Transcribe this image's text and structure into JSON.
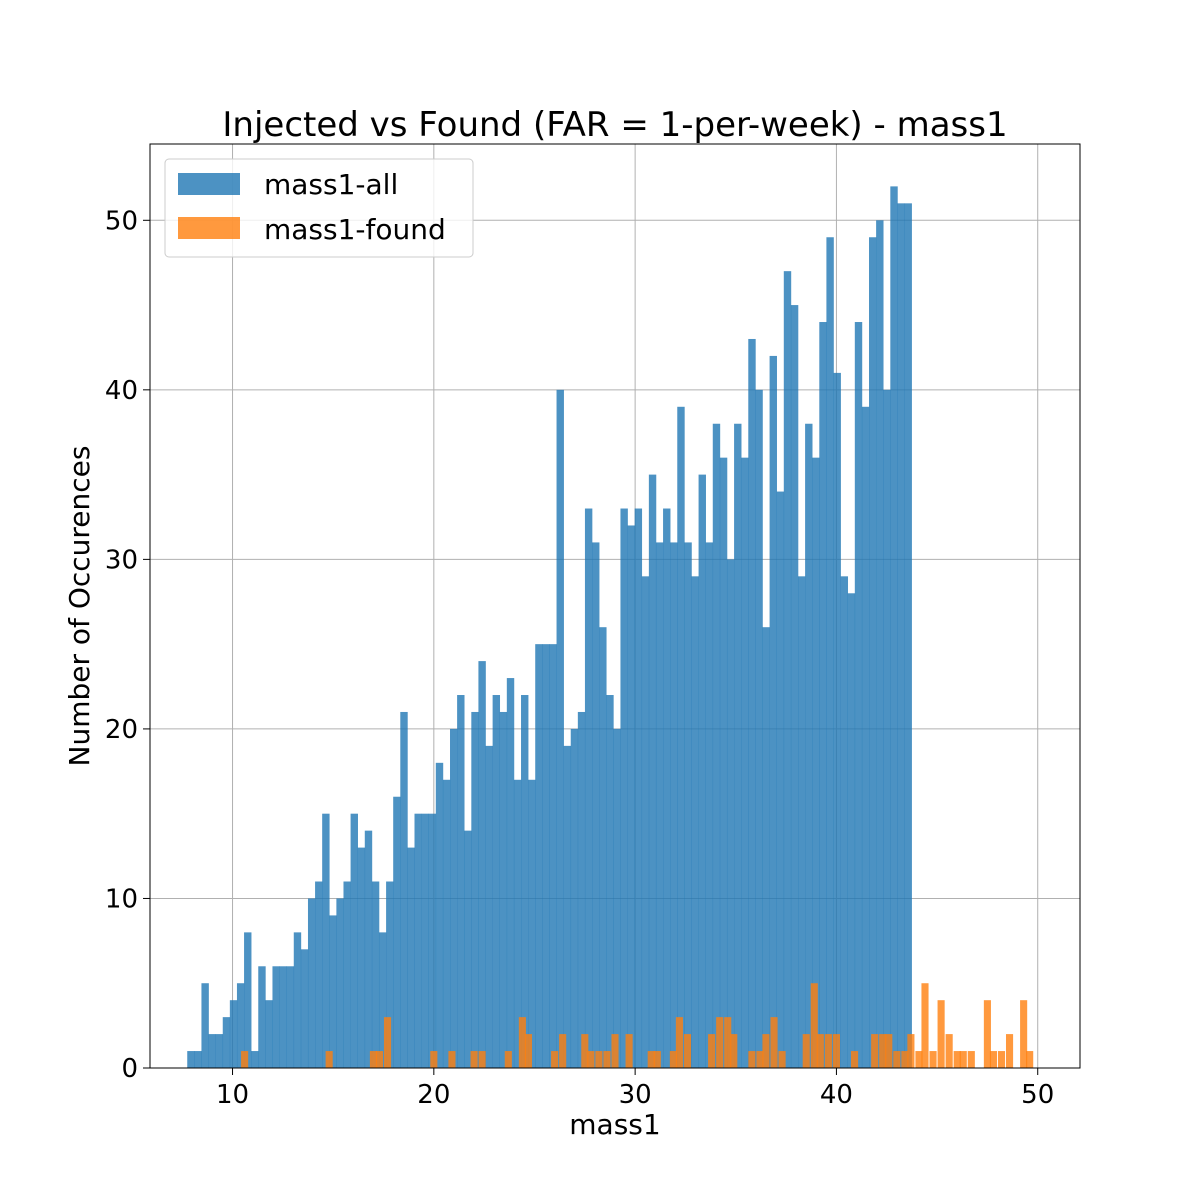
{
  "chart_data": {
    "type": "bar",
    "title": "Injected vs Found (FAR = 1-per-week) - mass1",
    "xlabel": "mass1",
    "ylabel": "Number of Occurences",
    "xlim": [
      5.9,
      52.1
    ],
    "ylim": [
      0,
      54.5
    ],
    "grid": true,
    "xticks": [
      10,
      20,
      30,
      40,
      50
    ],
    "xtick_labels": [
      "10",
      "20",
      "30",
      "40",
      "50"
    ],
    "yticks": [
      0,
      10,
      20,
      30,
      40,
      50
    ],
    "ytick_labels": [
      "0",
      "10",
      "20",
      "30",
      "40",
      "50"
    ],
    "legend_position": "top-left",
    "bin_start": 7.75,
    "bin_width": 0.3528,
    "series": [
      {
        "name": "mass1-all",
        "color": "#1f77b4",
        "values": [
          1,
          1,
          5,
          2,
          2,
          3,
          4,
          5,
          8,
          1,
          6,
          4,
          6,
          6,
          6,
          8,
          7,
          10,
          11,
          15,
          9,
          10,
          11,
          15,
          13,
          14,
          11,
          8,
          11,
          16,
          21,
          13,
          15,
          15,
          15,
          18,
          17,
          20,
          22,
          14,
          21,
          24,
          19,
          22,
          21,
          23,
          17,
          22,
          17,
          25,
          25,
          25,
          40,
          19,
          20,
          21,
          33,
          31,
          26,
          22,
          20,
          33,
          32,
          33,
          29,
          35,
          31,
          33,
          31,
          39,
          31,
          29,
          35,
          31,
          38,
          36,
          30,
          38,
          36,
          43,
          40,
          26,
          42,
          34,
          47,
          45,
          29,
          38,
          36,
          44,
          49,
          41,
          29,
          28,
          44,
          39,
          49,
          50,
          40,
          52,
          51,
          51
        ]
      },
      {
        "name": "mass1-found",
        "color": "#ff7f0e",
        "values": [
          0,
          0,
          0,
          0,
          0,
          0,
          0,
          0,
          0,
          0,
          0,
          0,
          0,
          0,
          0,
          0,
          0,
          0,
          0,
          0,
          0,
          0,
          0,
          0,
          0,
          0,
          0,
          0,
          0,
          0,
          0,
          0,
          0,
          0,
          0,
          0,
          0,
          0,
          0,
          0,
          0,
          0,
          0,
          0,
          0,
          0,
          0,
          0,
          0,
          0,
          0,
          0,
          0,
          0,
          0,
          0,
          0,
          0,
          0,
          0,
          0,
          0,
          0,
          0,
          0,
          0,
          0,
          0,
          0,
          0,
          0,
          0,
          0,
          0,
          0,
          0,
          0,
          0,
          0,
          0,
          0,
          0,
          0,
          0,
          0,
          0,
          0,
          0,
          0,
          0,
          0,
          0,
          0,
          0,
          0,
          0,
          0,
          0,
          0,
          0,
          0,
          0
        ],
        "points": [
          [
            10.6,
            1
          ],
          [
            14.8,
            1
          ],
          [
            17.0,
            1
          ],
          [
            17.3,
            1
          ],
          [
            17.7,
            3
          ],
          [
            20.0,
            1
          ],
          [
            20.9,
            1
          ],
          [
            22.0,
            1
          ],
          [
            22.4,
            1
          ],
          [
            23.7,
            1
          ],
          [
            24.4,
            3
          ],
          [
            24.7,
            2
          ],
          [
            26.0,
            1
          ],
          [
            26.4,
            2
          ],
          [
            27.5,
            2
          ],
          [
            27.8,
            1
          ],
          [
            28.2,
            1
          ],
          [
            28.6,
            1
          ],
          [
            29.0,
            2
          ],
          [
            29.7,
            2
          ],
          [
            30.8,
            1
          ],
          [
            31.1,
            1
          ],
          [
            31.9,
            1
          ],
          [
            32.2,
            3
          ],
          [
            32.6,
            2
          ],
          [
            33.8,
            2
          ],
          [
            34.2,
            3
          ],
          [
            34.6,
            3
          ],
          [
            34.9,
            2
          ],
          [
            35.8,
            1
          ],
          [
            36.2,
            1
          ],
          [
            36.5,
            2
          ],
          [
            36.9,
            3
          ],
          [
            37.3,
            1
          ],
          [
            38.5,
            2
          ],
          [
            38.9,
            5
          ],
          [
            39.2,
            2
          ],
          [
            39.6,
            2
          ],
          [
            40.0,
            2
          ],
          [
            40.9,
            1
          ],
          [
            41.9,
            2
          ],
          [
            42.3,
            2
          ],
          [
            42.6,
            2
          ],
          [
            43.0,
            1
          ],
          [
            43.4,
            1
          ],
          [
            43.7,
            2
          ],
          [
            44.1,
            1
          ],
          [
            44.4,
            5
          ],
          [
            44.8,
            1
          ],
          [
            45.2,
            4
          ],
          [
            45.6,
            2
          ],
          [
            46.0,
            1
          ],
          [
            46.3,
            1
          ],
          [
            46.7,
            1
          ],
          [
            47.5,
            4
          ],
          [
            47.8,
            1
          ],
          [
            48.2,
            1
          ],
          [
            48.6,
            2
          ],
          [
            49.3,
            4
          ],
          [
            49.6,
            1
          ]
        ]
      }
    ]
  }
}
